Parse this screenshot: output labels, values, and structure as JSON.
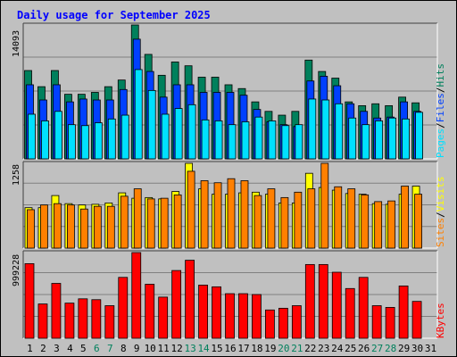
{
  "title": "Daily usage for September 2025",
  "colors": {
    "hits": "#00805c",
    "files": "#0040ff",
    "pages": "#00e0ff",
    "visits": "#ffff00",
    "sites": "#ff8000",
    "kbytes": "#ff0000",
    "weekend_label": "#00805c",
    "weekday_label": "#000000",
    "panel_bg": "#c0c0c0"
  },
  "legend": {
    "hits": "Hits",
    "files": "Files",
    "pages": "Pages",
    "visits": "Visits",
    "sites": "Sites",
    "kbytes": "KBytes",
    "sep": "/"
  },
  "chart_data": [
    {
      "type": "bar",
      "panel": "hits-files-pages",
      "categories": [
        "1",
        "2",
        "3",
        "4",
        "5",
        "6",
        "7",
        "8",
        "9",
        "10",
        "11",
        "12",
        "13",
        "14",
        "15",
        "16",
        "17",
        "18",
        "19",
        "20",
        "21",
        "22",
        "23",
        "24",
        "25",
        "26",
        "27",
        "28",
        "29",
        "30",
        "31"
      ],
      "weekend_days": [
        "6",
        "7",
        "13",
        "14",
        "20",
        "21",
        "27",
        "28"
      ],
      "ymax_label": "14093",
      "ylim": [
        0,
        14093
      ],
      "series": [
        {
          "name": "Hits",
          "values": [
            9300,
            7600,
            9300,
            6800,
            6800,
            7000,
            7600,
            8300,
            14093,
            11000,
            8800,
            10200,
            9800,
            8600,
            8600,
            7800,
            7400,
            6000,
            5000,
            4600,
            5000,
            10400,
            9200,
            8500,
            6000,
            5600,
            5800,
            5600,
            6500,
            5900,
            0
          ]
        },
        {
          "name": "Files",
          "values": [
            7800,
            6200,
            7800,
            6000,
            6300,
            6200,
            6200,
            7300,
            12600,
            9200,
            6500,
            7800,
            7800,
            7000,
            7000,
            7000,
            6700,
            5200,
            3900,
            3600,
            3400,
            8200,
            8700,
            7700,
            5800,
            5000,
            4300,
            4400,
            6000,
            5000,
            0
          ]
        },
        {
          "name": "Pages",
          "values": [
            4700,
            4000,
            5000,
            3600,
            3500,
            3800,
            4200,
            4600,
            9400,
            7200,
            4700,
            5300,
            5700,
            4100,
            4000,
            3600,
            3900,
            4400,
            4000,
            3500,
            3600,
            6300,
            6200,
            5800,
            4300,
            3600,
            4000,
            4300,
            4200,
            4900,
            0
          ]
        }
      ]
    },
    {
      "type": "bar",
      "panel": "visits-sites",
      "categories": [
        "1",
        "2",
        "3",
        "4",
        "5",
        "6",
        "7",
        "8",
        "9",
        "10",
        "11",
        "12",
        "13",
        "14",
        "15",
        "16",
        "17",
        "18",
        "19",
        "20",
        "21",
        "22",
        "23",
        "24",
        "25",
        "26",
        "27",
        "28",
        "29",
        "30",
        "31"
      ],
      "ymax_label": "1258",
      "ylim": [
        0,
        1258
      ],
      "series": [
        {
          "name": "Visits",
          "values": [
            600,
            600,
            780,
            660,
            640,
            650,
            670,
            820,
            740,
            750,
            730,
            840,
            1258,
            880,
            800,
            800,
            820,
            830,
            800,
            670,
            670,
            1110,
            900,
            860,
            810,
            800,
            660,
            650,
            800,
            920,
            0
          ]
        },
        {
          "name": "Sites",
          "values": [
            570,
            640,
            660,
            640,
            580,
            620,
            620,
            770,
            880,
            730,
            740,
            790,
            1140,
            1000,
            970,
            1030,
            1000,
            780,
            880,
            750,
            830,
            880,
            1258,
            910,
            880,
            790,
            690,
            700,
            920,
            800,
            0
          ]
        }
      ]
    },
    {
      "type": "bar",
      "panel": "kbytes",
      "categories": [
        "1",
        "2",
        "3",
        "4",
        "5",
        "6",
        "7",
        "8",
        "9",
        "10",
        "11",
        "12",
        "13",
        "14",
        "15",
        "16",
        "17",
        "18",
        "19",
        "20",
        "21",
        "22",
        "23",
        "24",
        "25",
        "26",
        "27",
        "28",
        "29",
        "30",
        "31"
      ],
      "ymax_label": "999228",
      "ylim": [
        0,
        999228
      ],
      "series": [
        {
          "name": "KBytes",
          "values": [
            870000,
            400000,
            640000,
            410000,
            460000,
            450000,
            380000,
            710000,
            999228,
            630000,
            480000,
            790000,
            910000,
            620000,
            600000,
            520000,
            520000,
            510000,
            330000,
            350000,
            380000,
            860000,
            860000,
            770000,
            580000,
            710000,
            380000,
            360000,
            610000,
            430000,
            0
          ]
        }
      ]
    }
  ]
}
